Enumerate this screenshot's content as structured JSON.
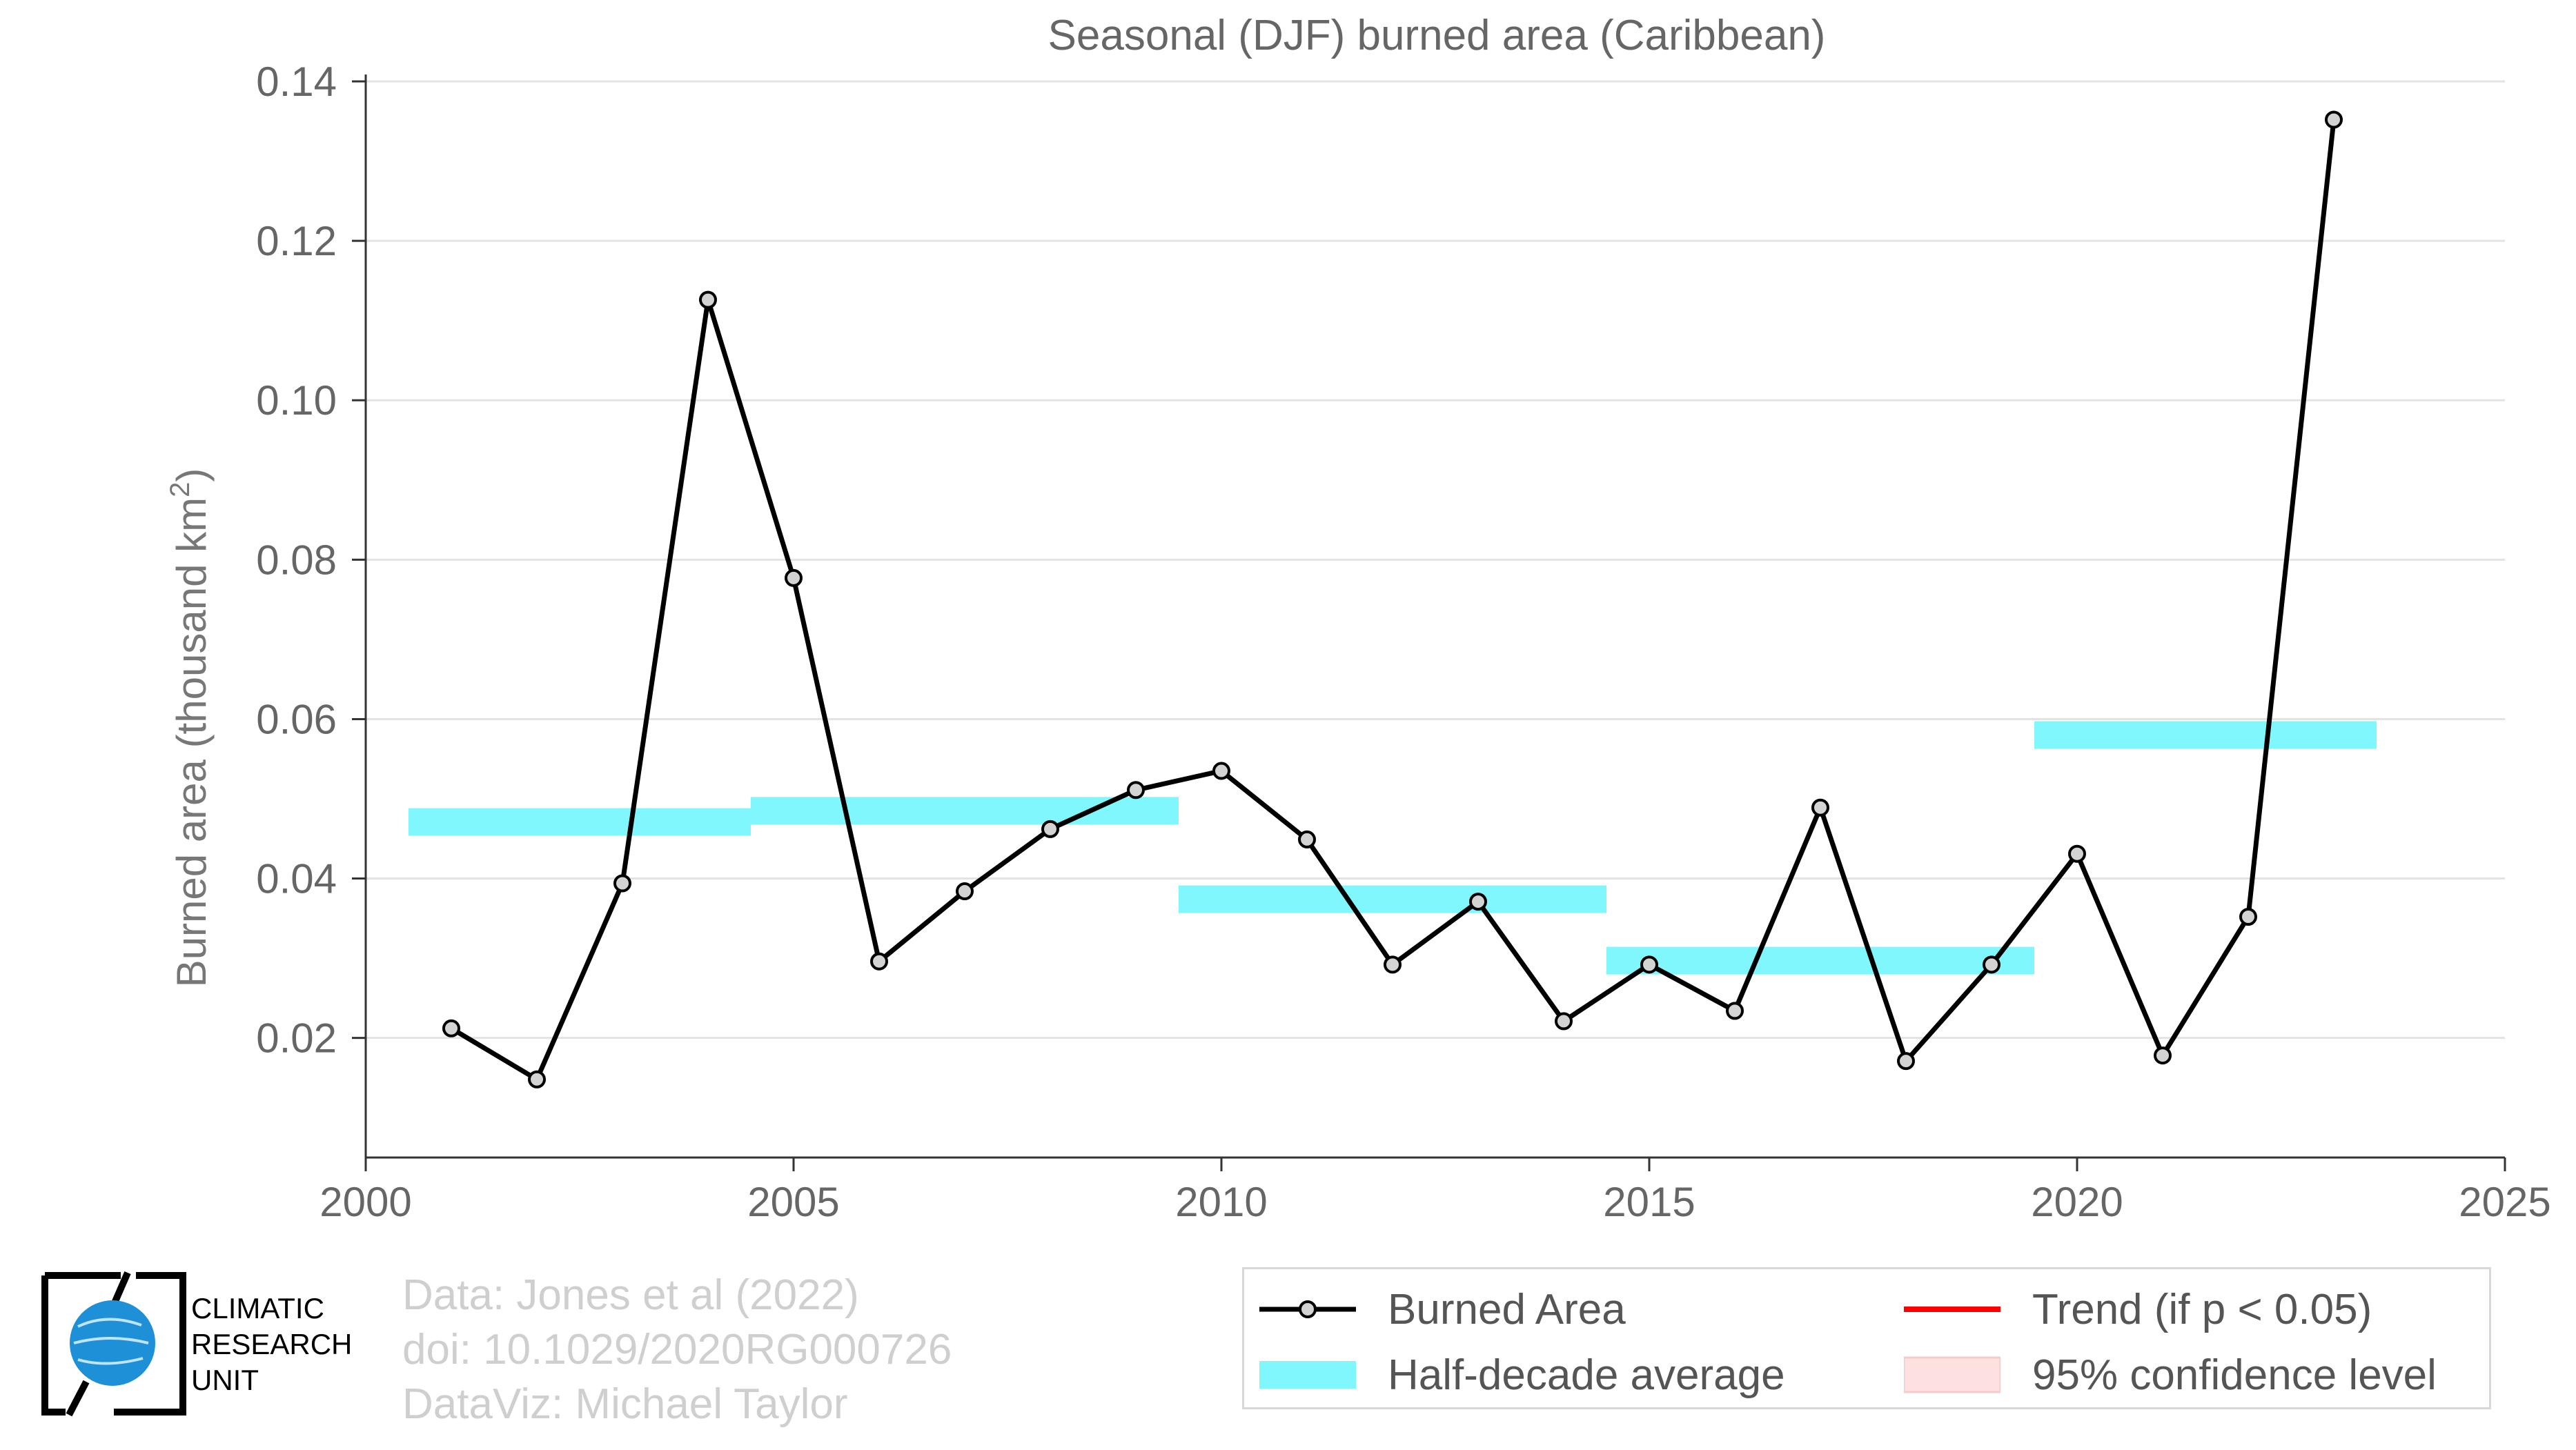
{
  "chart_data": {
    "type": "line",
    "title": "Seasonal (DJF) burned area (Caribbean)",
    "xlabel": "",
    "ylabel": "Burned area (thousand km",
    "ylabel_sup": "2",
    "ylabel_end": ")",
    "xlim": [
      2000,
      2025
    ],
    "ylim": [
      0.005,
      0.14
    ],
    "xticks": [
      2000,
      2005,
      2010,
      2015,
      2020,
      2025
    ],
    "xtick_labels": [
      "2000",
      "2005",
      "2010",
      "2015",
      "2020",
      "2025"
    ],
    "yticks": [
      0.02,
      0.04,
      0.06,
      0.08,
      0.1,
      0.12,
      0.14
    ],
    "ytick_labels": [
      "0.02",
      "0.04",
      "0.06",
      "0.08",
      "0.10",
      "0.12",
      "0.14"
    ],
    "grid": "horizontal",
    "legend_position": "bottom-right",
    "series": [
      {
        "name": "Burned Area",
        "color": "#000000",
        "marker_fill": "#d3d3d3",
        "x": [
          2001,
          2002,
          2003,
          2004,
          2005,
          2006,
          2007,
          2008,
          2009,
          2010,
          2011,
          2012,
          2013,
          2014,
          2015,
          2016,
          2017,
          2018,
          2019,
          2020,
          2021,
          2022,
          2023
        ],
        "y": [
          0.0212,
          0.0148,
          0.0394,
          0.1126,
          0.0777,
          0.0296,
          0.0384,
          0.0462,
          0.0511,
          0.0535,
          0.0449,
          0.0292,
          0.0371,
          0.0221,
          0.0292,
          0.0234,
          0.0489,
          0.0171,
          0.0292,
          0.0431,
          0.0178,
          0.0352,
          0.1352
        ]
      }
    ],
    "half_decade_average": {
      "name": "Half-decade average",
      "color": "#7ff7fc",
      "segments": [
        {
          "x_start": 2000.5,
          "x_end": 2004.5,
          "value": 0.0471
        },
        {
          "x_start": 2004.5,
          "x_end": 2009.5,
          "value": 0.0485
        },
        {
          "x_start": 2009.5,
          "x_end": 2014.5,
          "value": 0.0374
        },
        {
          "x_start": 2014.5,
          "x_end": 2019.5,
          "value": 0.0297
        },
        {
          "x_start": 2019.5,
          "x_end": 2023.5,
          "value": 0.058
        }
      ]
    },
    "legend": [
      {
        "key": "burned",
        "label": "Burned Area"
      },
      {
        "key": "trend",
        "label": "Trend (if p < 0.05)",
        "color": "#ff0000"
      },
      {
        "key": "half",
        "label": "Half-decade average",
        "color": "#7ff7fc"
      },
      {
        "key": "ci",
        "label": "95% confidence level",
        "color": "#fde0e0"
      }
    ]
  },
  "credits": {
    "line1": "Data: Jones et al (2022)",
    "line2": "doi: 10.1029/2020RG000726",
    "line3": "DataViz: Michael Taylor"
  },
  "logo": {
    "line1": "CLIMATIC",
    "line2": "RESEARCH",
    "line3": "UNIT",
    "globe_color": "#1e90d8"
  }
}
